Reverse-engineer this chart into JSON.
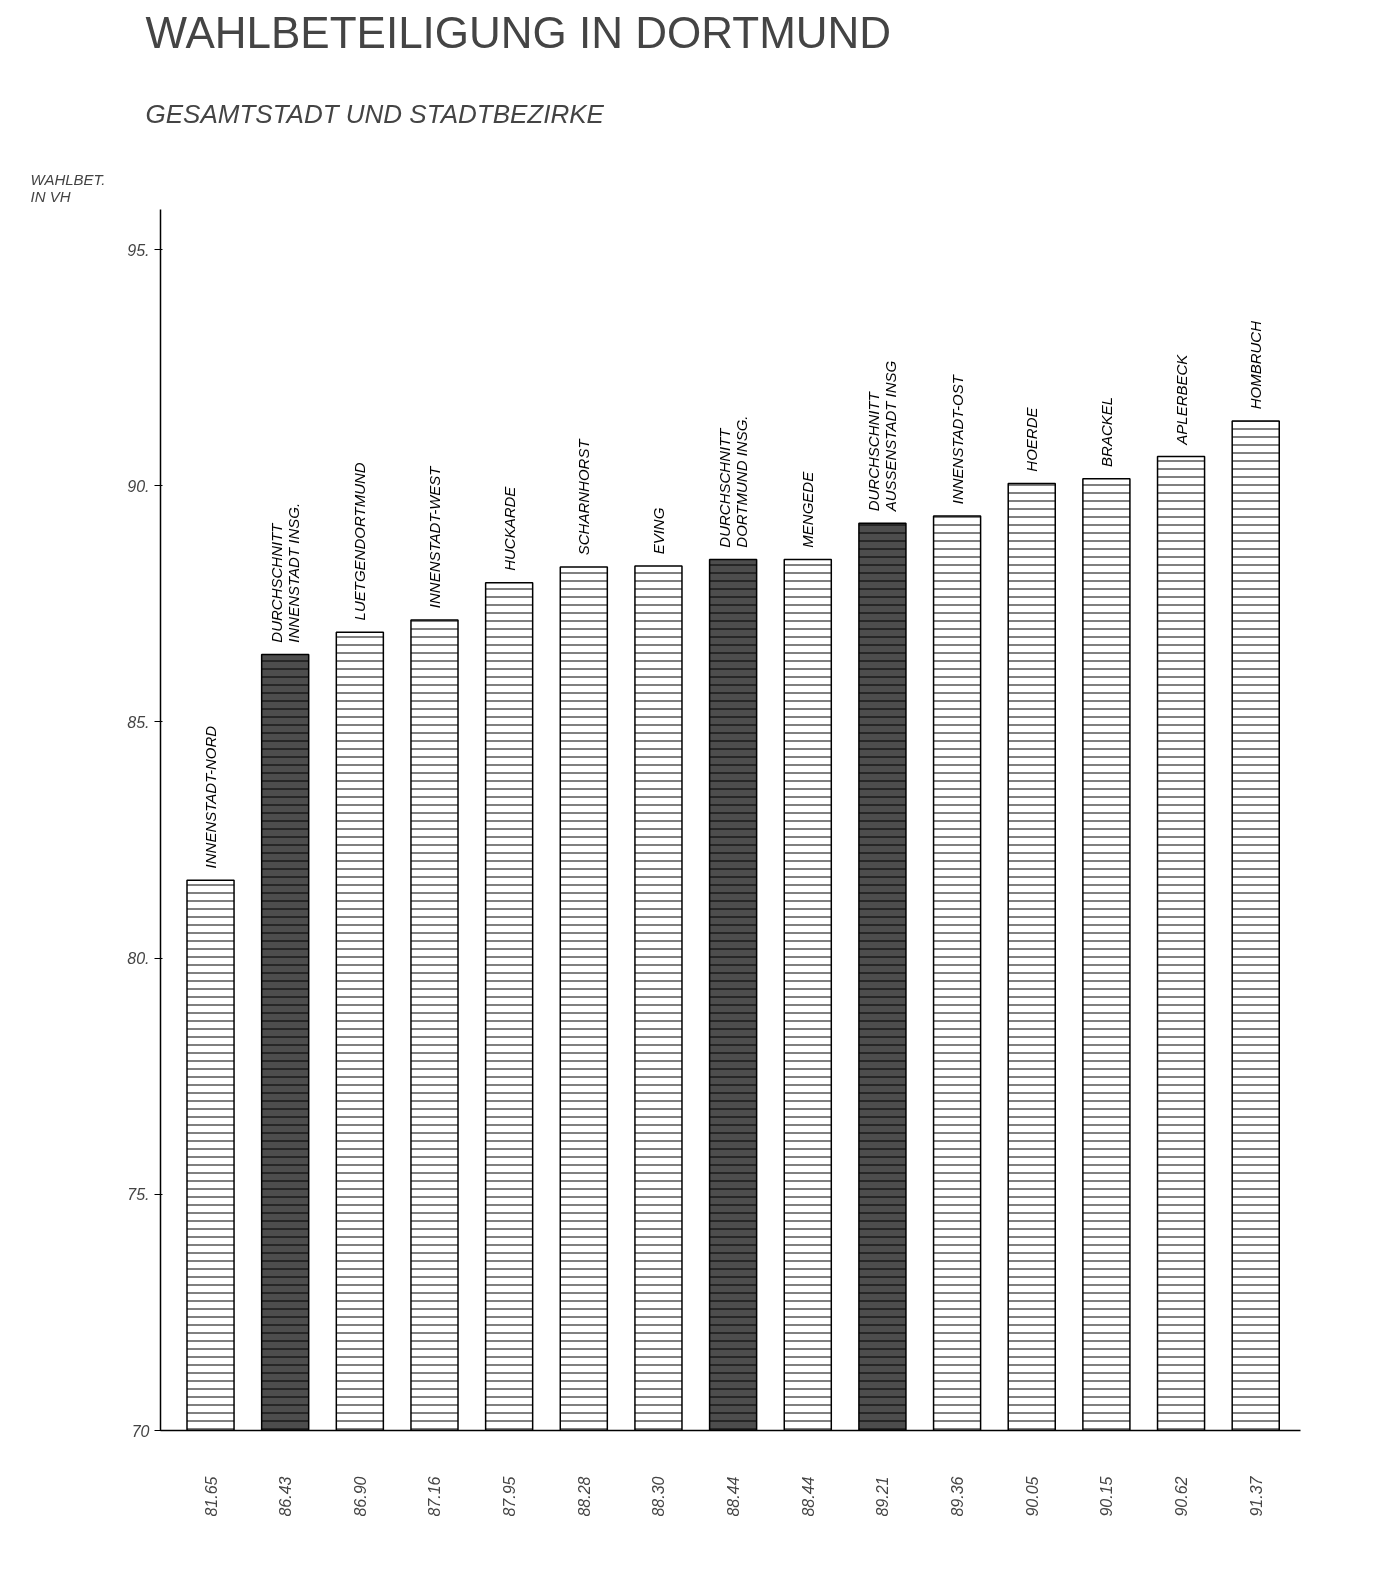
{
  "chart_data": {
    "type": "bar",
    "title": "WAHLBETEILIGUNG IN DORTMUND",
    "subtitle": "GESAMTSTADT UND STADTBEZIRKE",
    "ylabel": "WAHLBET.\nIN VH",
    "categories": [
      "INNENSTADT-NORD",
      "DURCHSCHNITT\nINNENSTADT INSG.",
      "LUETGENDORTMUND",
      "INNENSTADT-WEST",
      "HUCKARDE",
      "SCHARNHORST",
      "EVING",
      "DURCHSCHNITT\nDORTMUND INSG.",
      "MENGEDE",
      "DURCHSCHNITT\nAUSSENSTADT INSG",
      "INNENSTADT-OST",
      "HOERDE",
      "BRACKEL",
      "APLERBECK",
      "HOMBRUCH"
    ],
    "values": [
      81.65,
      86.43,
      86.9,
      87.16,
      87.95,
      88.28,
      88.3,
      88.44,
      88.44,
      89.21,
      89.36,
      90.05,
      90.15,
      90.62,
      91.37
    ],
    "value_labels": [
      "81.65",
      "86.43",
      "86.90",
      "87.16",
      "87.95",
      "88.28",
      "88.30",
      "88.44",
      "88.44",
      "89.21",
      "89.36",
      "90.05",
      "90.15",
      "90.62",
      "91.37"
    ],
    "colors": [
      "#ffffff",
      "#4d4d4d",
      "#ffffff",
      "#ffffff",
      "#ffffff",
      "#ffffff",
      "#ffffff",
      "#4d4d4d",
      "#ffffff",
      "#4d4d4d",
      "#ffffff",
      "#ffffff",
      "#ffffff",
      "#ffffff",
      "#ffffff"
    ],
    "ylim": [
      70,
      95.85
    ],
    "yticks": [
      70,
      {
        "value": 75,
        "label": "75."
      },
      {
        "value": 80,
        "label": "80."
      },
      {
        "value": 85,
        "label": "85."
      },
      {
        "value": 90,
        "label": "90."
      },
      {
        "value": 95,
        "label": "95."
      }
    ],
    "grid": false
  }
}
